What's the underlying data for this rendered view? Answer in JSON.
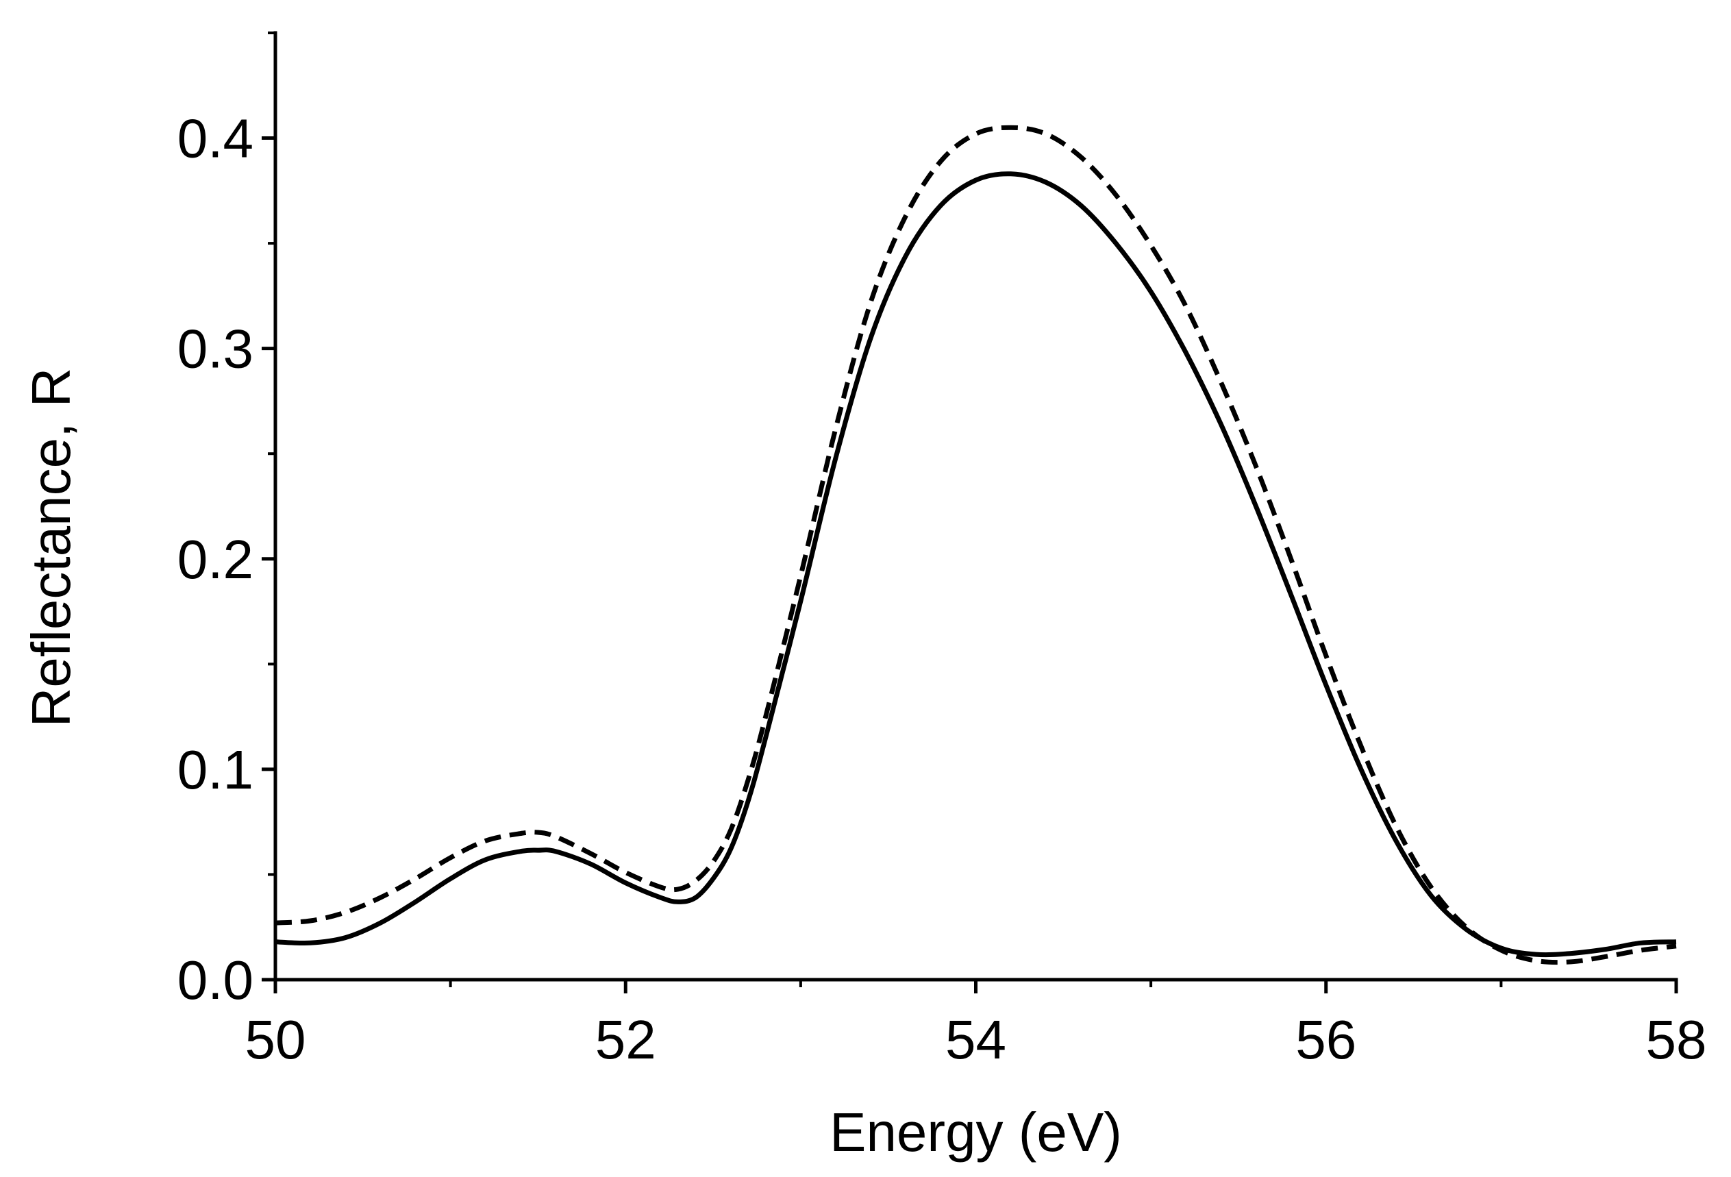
{
  "chart_data": {
    "type": "line",
    "title": "",
    "xlabel": "Energy (eV)",
    "ylabel": "Reflectance, R",
    "xlim": [
      50,
      58
    ],
    "ylim": [
      0,
      0.45
    ],
    "xticks": [
      50,
      52,
      54,
      56,
      58
    ],
    "xtick_labels": [
      "50",
      "52",
      "54",
      "56",
      "58"
    ],
    "yticks": [
      0.0,
      0.1,
      0.2,
      0.3,
      0.4
    ],
    "ytick_labels": [
      "0.0",
      "0.1",
      "0.2",
      "0.3",
      "0.4"
    ],
    "x_minor_step": 1,
    "y_minor_step": 0.05,
    "grid": false,
    "legend": "none",
    "series": [
      {
        "name": "solid",
        "style": "solid",
        "color": "#000000",
        "points": [
          [
            50.0,
            0.018
          ],
          [
            50.2,
            0.0175
          ],
          [
            50.4,
            0.02
          ],
          [
            50.6,
            0.027
          ],
          [
            50.8,
            0.037
          ],
          [
            51.0,
            0.048
          ],
          [
            51.2,
            0.057
          ],
          [
            51.4,
            0.061
          ],
          [
            51.5,
            0.0615
          ],
          [
            51.6,
            0.061
          ],
          [
            51.8,
            0.055
          ],
          [
            52.0,
            0.046
          ],
          [
            52.2,
            0.039
          ],
          [
            52.3,
            0.037
          ],
          [
            52.4,
            0.039
          ],
          [
            52.5,
            0.048
          ],
          [
            52.6,
            0.062
          ],
          [
            52.7,
            0.085
          ],
          [
            52.8,
            0.115
          ],
          [
            53.0,
            0.18
          ],
          [
            53.2,
            0.248
          ],
          [
            53.4,
            0.305
          ],
          [
            53.6,
            0.344
          ],
          [
            53.8,
            0.368
          ],
          [
            54.0,
            0.38
          ],
          [
            54.2,
            0.383
          ],
          [
            54.4,
            0.379
          ],
          [
            54.6,
            0.368
          ],
          [
            54.8,
            0.35
          ],
          [
            55.0,
            0.327
          ],
          [
            55.2,
            0.298
          ],
          [
            55.4,
            0.264
          ],
          [
            55.6,
            0.225
          ],
          [
            55.8,
            0.183
          ],
          [
            56.0,
            0.14
          ],
          [
            56.2,
            0.1
          ],
          [
            56.4,
            0.066
          ],
          [
            56.6,
            0.04
          ],
          [
            56.8,
            0.024
          ],
          [
            57.0,
            0.015
          ],
          [
            57.2,
            0.012
          ],
          [
            57.4,
            0.0125
          ],
          [
            57.6,
            0.0145
          ],
          [
            57.8,
            0.0175
          ],
          [
            58.0,
            0.018
          ]
        ]
      },
      {
        "name": "dashed",
        "style": "dashed",
        "color": "#000000",
        "points": [
          [
            50.0,
            0.027
          ],
          [
            50.2,
            0.028
          ],
          [
            50.4,
            0.032
          ],
          [
            50.6,
            0.039
          ],
          [
            50.8,
            0.048
          ],
          [
            51.0,
            0.058
          ],
          [
            51.2,
            0.066
          ],
          [
            51.4,
            0.0695
          ],
          [
            51.5,
            0.07
          ],
          [
            51.6,
            0.068
          ],
          [
            51.8,
            0.06
          ],
          [
            52.0,
            0.051
          ],
          [
            52.2,
            0.044
          ],
          [
            52.3,
            0.043
          ],
          [
            52.4,
            0.047
          ],
          [
            52.5,
            0.056
          ],
          [
            52.6,
            0.071
          ],
          [
            52.7,
            0.095
          ],
          [
            52.8,
            0.125
          ],
          [
            53.0,
            0.192
          ],
          [
            53.2,
            0.262
          ],
          [
            53.4,
            0.322
          ],
          [
            53.6,
            0.363
          ],
          [
            53.8,
            0.389
          ],
          [
            54.0,
            0.402
          ],
          [
            54.2,
            0.405
          ],
          [
            54.4,
            0.402
          ],
          [
            54.6,
            0.391
          ],
          [
            54.8,
            0.373
          ],
          [
            55.0,
            0.349
          ],
          [
            55.2,
            0.32
          ],
          [
            55.4,
            0.284
          ],
          [
            55.6,
            0.244
          ],
          [
            55.8,
            0.2
          ],
          [
            56.0,
            0.154
          ],
          [
            56.2,
            0.111
          ],
          [
            56.4,
            0.073
          ],
          [
            56.6,
            0.044
          ],
          [
            56.8,
            0.025
          ],
          [
            57.0,
            0.014
          ],
          [
            57.2,
            0.009
          ],
          [
            57.4,
            0.0085
          ],
          [
            57.6,
            0.011
          ],
          [
            57.8,
            0.014
          ],
          [
            58.0,
            0.016
          ]
        ]
      }
    ]
  }
}
